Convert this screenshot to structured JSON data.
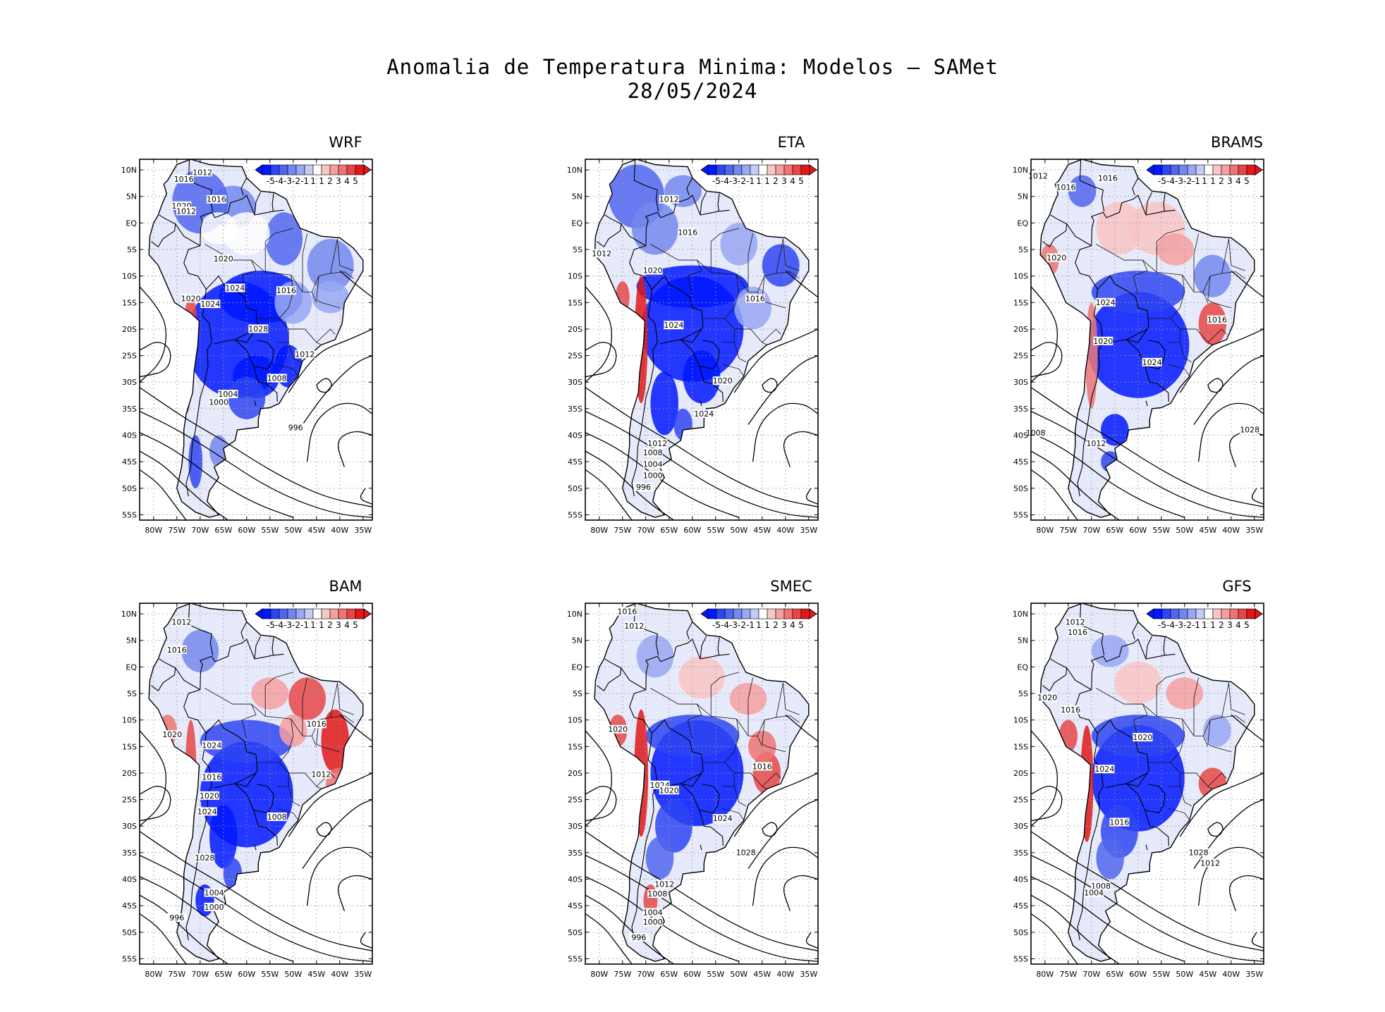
{
  "title": "Anomalia de Temperatura Minima: Modelos — SAMet",
  "date": "28/05/2024",
  "y_ticks": [
    "10N",
    "5N",
    "EQ",
    "5S",
    "10S",
    "15S",
    "20S",
    "25S",
    "30S",
    "35S",
    "40S",
    "45S",
    "50S",
    "55S"
  ],
  "x_ticks": [
    "80W",
    "75W",
    "70W",
    "65W",
    "60W",
    "55W",
    "50W",
    "45W",
    "40W",
    "35W"
  ],
  "colorbar": {
    "labels": [
      "-5",
      "-4",
      "-3",
      "-2",
      "-1",
      "1",
      "1",
      "2",
      "3",
      "4",
      "5"
    ],
    "colors": [
      "#0018ff",
      "#2e45f2",
      "#5066ee",
      "#7388ee",
      "#98a8f3",
      "#c3ccf7",
      "#ffffff",
      "#f9c6c6",
      "#f5a0a0",
      "#ef7474",
      "#e84646",
      "#e01818"
    ]
  },
  "panels": [
    {
      "name": "WRF",
      "isobars": [
        "1012",
        "1016",
        "1020",
        "1012",
        "1016",
        "1020",
        "1024",
        "1016",
        "1020",
        "1024",
        "1028",
        "1012",
        "1008",
        "1004",
        "1000",
        "996"
      ]
    },
    {
      "name": "ETA",
      "isobars": [
        "1012",
        "1012",
        "1016",
        "1020",
        "1024",
        "1016",
        "1020",
        "1024",
        "1012",
        "1008",
        "1004",
        "1000",
        "996"
      ]
    },
    {
      "name": "BRAMS",
      "isobars": [
        "1012",
        "1016",
        "1016",
        "1020",
        "1024",
        "1020",
        "1016",
        "1024",
        "1028",
        "1012",
        "1008"
      ]
    },
    {
      "name": "BAM",
      "isobars": [
        "1012",
        "1016",
        "1020",
        "1024",
        "1016",
        "1020",
        "1024",
        "1028",
        "1016",
        "1012",
        "1008",
        "1004",
        "1000",
        "996"
      ]
    },
    {
      "name": "SMEC",
      "isobars": [
        "1016",
        "1012",
        "1020",
        "1024",
        "1016",
        "1020",
        "1024",
        "1028",
        "1012",
        "1008",
        "1004",
        "1000",
        "996"
      ]
    },
    {
      "name": "GFS",
      "isobars": [
        "1012",
        "1016",
        "1020",
        "1016",
        "1020",
        "1024",
        "1016",
        "1028",
        "1012",
        "1008",
        "1004"
      ]
    }
  ]
}
